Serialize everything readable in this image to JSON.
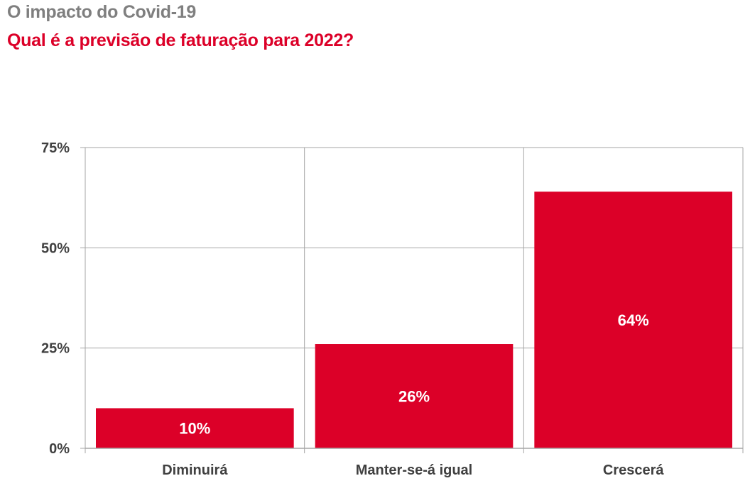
{
  "header": {
    "title": "O impacto do Covid-19",
    "subtitle": "Qual é a previsão de faturação para 2022?"
  },
  "colors": {
    "bar": "#dc0028",
    "title": "#7f7f7f",
    "subtitle": "#dc0028",
    "grid": "#a6a6a6",
    "text": "#404040"
  },
  "chart_data": {
    "type": "bar",
    "title": "Qual é a previsão de faturação para 2022?",
    "categories": [
      "Diminuirá",
      "Manter-se-á igual",
      "Crescerá"
    ],
    "values": [
      10,
      26,
      64
    ],
    "data_labels": [
      "10%",
      "26%",
      "64%"
    ],
    "ylim": [
      0,
      75
    ],
    "yticks": [
      0,
      25,
      50,
      75
    ],
    "ytick_labels": [
      "0%",
      "25%",
      "50%",
      "75%"
    ],
    "xlabel": "",
    "ylabel": "",
    "grid": true,
    "legend": "none"
  }
}
